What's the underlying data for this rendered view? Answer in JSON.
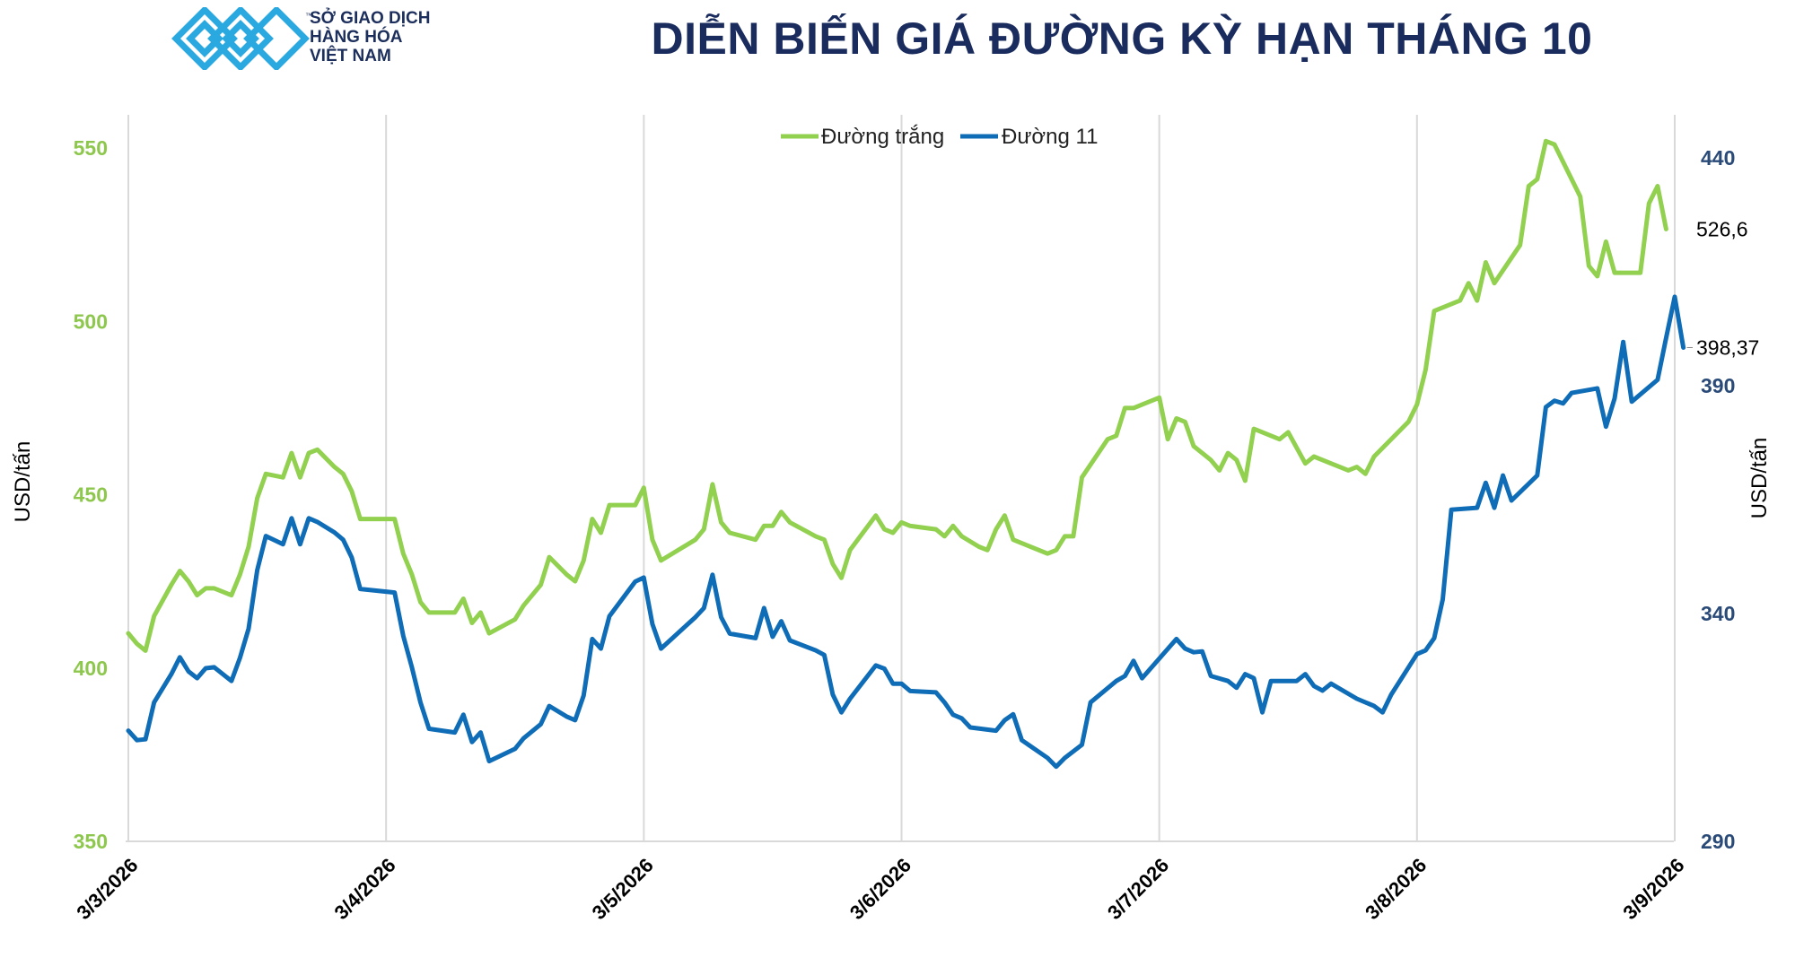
{
  "header": {
    "logo_lines": [
      "SỞ GIAO DỊCH",
      "HÀNG HÓA",
      "VIỆT NAM"
    ],
    "title": "DIỄN BIẾN GIÁ ĐƯỜNG KỲ HẠN THÁNG 10"
  },
  "colors": {
    "white_sugar": "#92d050",
    "sugar11": "#0f6cb6",
    "left_axis": "#8ec74e",
    "right_axis": "#2a4a78",
    "grid": "#d9d9d9",
    "logo": "#29a9e0"
  },
  "chart_data": {
    "type": "line",
    "title": "DIỄN BIẾN GIÁ ĐƯỜNG KỲ HẠN THÁNG 10",
    "x_tick_labels": [
      "3/3/2026",
      "3/4/2026",
      "3/5/2026",
      "3/6/2026",
      "3/7/2026",
      "3/8/2026",
      "3/9/2026"
    ],
    "ylabel_left": "USD/tấn",
    "ylabel_right": "USD/tấn",
    "ylim_left": [
      350,
      550
    ],
    "yticks_left": [
      "350",
      "400",
      "450",
      "500",
      "550"
    ],
    "ylim_right": [
      290,
      440
    ],
    "yticks_right": [
      "290",
      "340",
      "390",
      "440"
    ],
    "grid": "vertical",
    "legend_position": "top-center",
    "series": [
      {
        "name": "Đường trắng",
        "axis": "left",
        "end_label": "526,6",
        "points": [
          [
            0,
            410
          ],
          [
            1,
            407
          ],
          [
            2,
            405
          ],
          [
            3,
            415
          ],
          [
            5,
            424
          ],
          [
            6,
            428
          ],
          [
            7,
            425
          ],
          [
            8,
            421
          ],
          [
            9,
            423
          ],
          [
            10,
            423
          ],
          [
            12,
            421
          ],
          [
            13,
            427
          ],
          [
            14,
            435
          ],
          [
            15,
            449
          ],
          [
            16,
            456
          ],
          [
            18,
            455
          ],
          [
            19,
            462
          ],
          [
            20,
            455
          ],
          [
            21,
            462
          ],
          [
            22,
            463
          ],
          [
            24,
            458
          ],
          [
            25,
            456
          ],
          [
            26,
            451
          ],
          [
            27,
            443
          ],
          [
            31,
            443
          ],
          [
            32,
            433
          ],
          [
            33,
            427
          ],
          [
            34,
            419
          ],
          [
            35,
            416
          ],
          [
            38,
            416
          ],
          [
            39,
            420
          ],
          [
            40,
            413
          ],
          [
            41,
            416
          ],
          [
            42,
            410
          ],
          [
            45,
            414
          ],
          [
            46,
            418
          ],
          [
            48,
            424
          ],
          [
            49,
            432
          ],
          [
            51,
            427
          ],
          [
            52,
            425
          ],
          [
            53,
            431
          ],
          [
            54,
            443
          ],
          [
            55,
            439
          ],
          [
            56,
            447
          ],
          [
            59,
            447
          ],
          [
            60,
            452
          ],
          [
            61,
            437
          ],
          [
            62,
            431
          ],
          [
            66,
            437
          ],
          [
            67,
            440
          ],
          [
            68,
            453
          ],
          [
            69,
            442
          ],
          [
            70,
            439
          ],
          [
            73,
            437
          ],
          [
            74,
            441
          ],
          [
            75,
            441
          ],
          [
            76,
            445
          ],
          [
            77,
            442
          ],
          [
            80,
            438
          ],
          [
            81,
            437
          ],
          [
            82,
            430
          ],
          [
            83,
            426
          ],
          [
            84,
            434
          ],
          [
            87,
            444
          ],
          [
            88,
            440
          ],
          [
            89,
            439
          ],
          [
            90,
            442
          ],
          [
            91,
            441
          ],
          [
            94,
            440
          ],
          [
            95,
            438
          ],
          [
            96,
            441
          ],
          [
            97,
            438
          ],
          [
            99,
            435
          ],
          [
            100,
            434
          ],
          [
            101,
            440
          ],
          [
            102,
            444
          ],
          [
            103,
            437
          ],
          [
            107,
            433
          ],
          [
            108,
            434
          ],
          [
            109,
            438
          ],
          [
            110,
            438
          ],
          [
            111,
            455
          ],
          [
            114,
            466
          ],
          [
            115,
            467
          ],
          [
            116,
            475
          ],
          [
            117,
            475
          ],
          [
            120,
            478
          ],
          [
            121,
            466
          ],
          [
            122,
            472
          ],
          [
            123,
            471
          ],
          [
            124,
            464
          ],
          [
            126,
            460
          ],
          [
            127,
            457
          ],
          [
            128,
            462
          ],
          [
            129,
            460
          ],
          [
            130,
            454
          ],
          [
            131,
            469
          ],
          [
            133,
            467
          ],
          [
            134,
            466
          ],
          [
            135,
            468
          ],
          [
            137,
            459
          ],
          [
            138,
            461
          ],
          [
            141,
            458
          ],
          [
            142,
            457
          ],
          [
            143,
            458
          ],
          [
            144,
            456
          ],
          [
            145,
            461
          ],
          [
            149,
            471
          ],
          [
            150,
            476
          ],
          [
            151,
            486
          ],
          [
            152,
            503
          ],
          [
            155,
            506
          ],
          [
            156,
            511
          ],
          [
            157,
            506
          ],
          [
            158,
            517
          ],
          [
            159,
            511
          ],
          [
            162,
            522
          ],
          [
            163,
            539
          ],
          [
            164,
            541
          ],
          [
            165,
            552
          ],
          [
            166,
            551
          ],
          [
            169,
            536
          ],
          [
            170,
            516
          ],
          [
            171,
            513
          ],
          [
            172,
            523
          ],
          [
            173,
            514
          ],
          [
            176,
            514
          ],
          [
            177,
            534
          ],
          [
            178,
            539
          ],
          [
            179,
            526.6
          ]
        ]
      },
      {
        "name": "Đường 11",
        "axis": "right",
        "end_label": "398,37",
        "points": [
          [
            0,
            314.3
          ],
          [
            1,
            312.2
          ],
          [
            2,
            312.4
          ],
          [
            3,
            320.5
          ],
          [
            5,
            326.7
          ],
          [
            6,
            330.4
          ],
          [
            7,
            327.3
          ],
          [
            8,
            325.8
          ],
          [
            9,
            328.0
          ],
          [
            10,
            328.2
          ],
          [
            12,
            325.2
          ],
          [
            13,
            330.3
          ],
          [
            14,
            336.7
          ],
          [
            15,
            349.5
          ],
          [
            16,
            357.0
          ],
          [
            18,
            355.2
          ],
          [
            19,
            360.9
          ],
          [
            20,
            355.2
          ],
          [
            21,
            360.9
          ],
          [
            22,
            360.1
          ],
          [
            24,
            357.8
          ],
          [
            25,
            356.2
          ],
          [
            26,
            352.3
          ],
          [
            27,
            345.4
          ],
          [
            31,
            344.6
          ],
          [
            32,
            335.1
          ],
          [
            33,
            328.2
          ],
          [
            34,
            320.5
          ],
          [
            35,
            314.7
          ],
          [
            38,
            313.9
          ],
          [
            39,
            317.8
          ],
          [
            40,
            311.8
          ],
          [
            41,
            313.9
          ],
          [
            42,
            307.6
          ],
          [
            45,
            310.3
          ],
          [
            46,
            312.6
          ],
          [
            48,
            315.7
          ],
          [
            49,
            319.7
          ],
          [
            51,
            317.4
          ],
          [
            52,
            316.6
          ],
          [
            53,
            322.0
          ],
          [
            54,
            334.4
          ],
          [
            55,
            332.3
          ],
          [
            56,
            339.4
          ],
          [
            59,
            347.0
          ],
          [
            60,
            347.9
          ],
          [
            61,
            337.7
          ],
          [
            62,
            332.3
          ],
          [
            66,
            339.2
          ],
          [
            67,
            341.2
          ],
          [
            68,
            348.5
          ],
          [
            69,
            339.2
          ],
          [
            70,
            335.6
          ],
          [
            73,
            334.6
          ],
          [
            74,
            341.2
          ],
          [
            75,
            334.9
          ],
          [
            76,
            338.3
          ],
          [
            77,
            334.1
          ],
          [
            80,
            331.9
          ],
          [
            81,
            330.9
          ],
          [
            82,
            322.2
          ],
          [
            83,
            318.3
          ],
          [
            84,
            321.3
          ],
          [
            87,
            328.6
          ],
          [
            88,
            327.9
          ],
          [
            89,
            324.6
          ],
          [
            90,
            324.6
          ],
          [
            91,
            323.0
          ],
          [
            94,
            322.7
          ],
          [
            95,
            320.5
          ],
          [
            96,
            317.8
          ],
          [
            97,
            317.0
          ],
          [
            98,
            315.0
          ],
          [
            101,
            314.3
          ],
          [
            102,
            316.6
          ],
          [
            103,
            317.9
          ],
          [
            104,
            312.2
          ],
          [
            107,
            308.3
          ],
          [
            108,
            306.4
          ],
          [
            109,
            308.3
          ],
          [
            111,
            311.2
          ],
          [
            112,
            320.5
          ],
          [
            115,
            325.2
          ],
          [
            116,
            326.3
          ],
          [
            117,
            329.6
          ],
          [
            118,
            325.8
          ],
          [
            122,
            334.4
          ],
          [
            123,
            332.3
          ],
          [
            124,
            331.5
          ],
          [
            125,
            331.7
          ],
          [
            126,
            326.3
          ],
          [
            128,
            325.2
          ],
          [
            129,
            323.7
          ],
          [
            130,
            326.7
          ],
          [
            131,
            325.8
          ],
          [
            132,
            318.3
          ],
          [
            133,
            325.2
          ],
          [
            136,
            325.2
          ],
          [
            137,
            326.7
          ],
          [
            138,
            324.1
          ],
          [
            139,
            323.1
          ],
          [
            140,
            324.6
          ],
          [
            143,
            321.3
          ],
          [
            145,
            319.7
          ],
          [
            146,
            318.3
          ],
          [
            147,
            322.2
          ],
          [
            150,
            331.1
          ],
          [
            151,
            331.9
          ],
          [
            152,
            334.6
          ],
          [
            153,
            343.1
          ],
          [
            154,
            362.8
          ],
          [
            157,
            363.2
          ],
          [
            158,
            368.7
          ],
          [
            159,
            363.2
          ],
          [
            160,
            370.3
          ],
          [
            161,
            364.8
          ],
          [
            164,
            370.3
          ],
          [
            165,
            385.3
          ],
          [
            166,
            386.7
          ],
          [
            167,
            386.1
          ],
          [
            168,
            388.4
          ],
          [
            171,
            389.4
          ],
          [
            172,
            381.0
          ],
          [
            173,
            387.2
          ],
          [
            174,
            399.6
          ],
          [
            175,
            386.5
          ],
          [
            178,
            391.3
          ],
          [
            179,
            400.5
          ],
          [
            180,
            409.5
          ],
          [
            181,
            398.37
          ]
        ]
      }
    ]
  }
}
